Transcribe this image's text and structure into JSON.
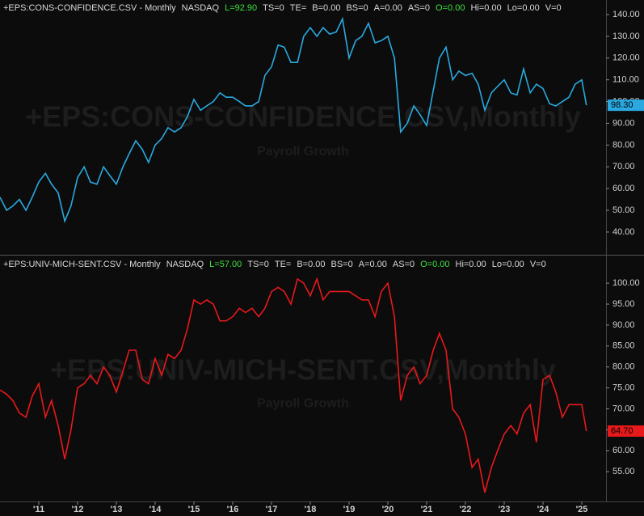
{
  "chart_data": [
    {
      "type": "line",
      "header": [
        {
          "text": "+EPS:CONS-CONFIDENCE.CSV - Monthly",
          "color": "#d8d8d8"
        },
        {
          "text": "NASDAQ",
          "color": "#d8d8d8"
        },
        {
          "text": "L=92.90",
          "color": "#3ee03e"
        },
        {
          "text": "TS=0",
          "color": "#d8d8d8"
        },
        {
          "text": "TE=",
          "color": "#d8d8d8"
        },
        {
          "text": "B=0.00",
          "color": "#d8d8d8"
        },
        {
          "text": "BS=0",
          "color": "#d8d8d8"
        },
        {
          "text": "A=0.00",
          "color": "#d8d8d8"
        },
        {
          "text": "AS=0",
          "color": "#d8d8d8"
        },
        {
          "text": "O=0.00",
          "color": "#3ee03e"
        },
        {
          "text": "Hi=0.00",
          "color": "#d8d8d8"
        },
        {
          "text": "Lo=0.00",
          "color": "#d8d8d8"
        },
        {
          "text": "V=0",
          "color": "#d8d8d8"
        }
      ],
      "watermark": "+EPS:CONS-CONFIDENCE.CSV,Monthly",
      "watermark_sub": "Payroll Growth",
      "last_label": "98.30",
      "xlim": [
        2010,
        2025.625
      ],
      "ylim": [
        30.3,
        146.7
      ],
      "yticks": [
        {
          "value": 40,
          "label": "40.00"
        },
        {
          "value": 50,
          "label": "50.00"
        },
        {
          "value": 60,
          "label": "60.00"
        },
        {
          "value": 70,
          "label": "70.00"
        },
        {
          "value": 80,
          "label": "80.00"
        },
        {
          "value": 90,
          "label": "90.00"
        },
        {
          "value": 100,
          "label": "100.00"
        },
        {
          "value": 110,
          "label": "110.00"
        },
        {
          "value": 120,
          "label": "120.00"
        },
        {
          "value": 130,
          "label": "130.00"
        },
        {
          "value": 140,
          "label": "140.00"
        }
      ],
      "x": [
        2010,
        2010.17,
        2010.33,
        2010.5,
        2010.67,
        2010.83,
        2011,
        2011.17,
        2011.33,
        2011.5,
        2011.67,
        2011.83,
        2012,
        2012.17,
        2012.33,
        2012.5,
        2012.67,
        2012.83,
        2013,
        2013.17,
        2013.33,
        2013.5,
        2013.67,
        2013.83,
        2014,
        2014.17,
        2014.33,
        2014.5,
        2014.67,
        2014.83,
        2015,
        2015.17,
        2015.33,
        2015.5,
        2015.67,
        2015.83,
        2016,
        2016.17,
        2016.33,
        2016.5,
        2016.67,
        2016.83,
        2017,
        2017.17,
        2017.33,
        2017.5,
        2017.67,
        2017.83,
        2018,
        2018.17,
        2018.33,
        2018.5,
        2018.67,
        2018.83,
        2019,
        2019.17,
        2019.33,
        2019.5,
        2019.67,
        2019.83,
        2020,
        2020.17,
        2020.33,
        2020.5,
        2020.67,
        2020.83,
        2021,
        2021.17,
        2021.33,
        2021.5,
        2021.67,
        2021.83,
        2022,
        2022.17,
        2022.33,
        2022.5,
        2022.67,
        2022.83,
        2023,
        2023.17,
        2023.33,
        2023.5,
        2023.67,
        2023.83,
        2024,
        2024.17,
        2024.33,
        2024.5,
        2024.67,
        2024.83,
        2025,
        2025.12
      ],
      "series": [
        {
          "color": "#2aa9e0",
          "values": [
            56,
            50,
            52,
            55,
            50,
            56,
            63,
            67,
            62,
            58,
            45,
            52,
            65,
            70,
            63,
            62,
            70,
            66,
            62,
            70,
            76,
            82,
            78,
            72,
            80,
            83,
            88,
            86,
            88,
            93,
            101,
            96,
            98,
            100,
            104,
            102,
            102,
            100,
            98,
            98,
            100,
            112,
            116,
            126,
            125,
            118,
            118,
            130,
            134,
            130,
            134,
            131,
            132,
            138,
            120,
            128,
            130,
            136,
            127,
            128,
            130,
            120,
            86,
            90,
            98,
            94,
            89,
            105,
            120,
            125,
            110,
            114,
            112,
            113,
            108,
            96,
            104,
            107,
            110,
            104,
            103,
            115,
            104,
            108,
            106,
            99,
            98,
            100,
            102,
            108,
            110,
            98.3
          ]
        }
      ]
    },
    {
      "type": "line",
      "header": [
        {
          "text": "+EPS:UNIV-MICH-SENT.CSV - Monthly",
          "color": "#d8d8d8"
        },
        {
          "text": "NASDAQ",
          "color": "#d8d8d8"
        },
        {
          "text": "L=57.00",
          "color": "#3ee03e"
        },
        {
          "text": "TS=0",
          "color": "#d8d8d8"
        },
        {
          "text": "TE=",
          "color": "#d8d8d8"
        },
        {
          "text": "B=0.00",
          "color": "#d8d8d8"
        },
        {
          "text": "BS=0",
          "color": "#d8d8d8"
        },
        {
          "text": "A=0.00",
          "color": "#d8d8d8"
        },
        {
          "text": "AS=0",
          "color": "#d8d8d8"
        },
        {
          "text": "O=0.00",
          "color": "#3ee03e"
        },
        {
          "text": "Hi=0.00",
          "color": "#d8d8d8"
        },
        {
          "text": "Lo=0.00",
          "color": "#d8d8d8"
        },
        {
          "text": "V=0",
          "color": "#d8d8d8"
        }
      ],
      "watermark": "+EPS:UNIV-MICH-SENT.CSV,Monthly",
      "watermark_sub": "Payroll Growth",
      "last_label": "64.70",
      "xlim": [
        2010,
        2025.625
      ],
      "xticks": [
        {
          "value": 2011,
          "label": "'11"
        },
        {
          "value": 2012,
          "label": "'12"
        },
        {
          "value": 2013,
          "label": "'13"
        },
        {
          "value": 2014,
          "label": "'14"
        },
        {
          "value": 2015,
          "label": "'15"
        },
        {
          "value": 2016,
          "label": "'16"
        },
        {
          "value": 2017,
          "label": "'17"
        },
        {
          "value": 2018,
          "label": "'18"
        },
        {
          "value": 2019,
          "label": "'19"
        },
        {
          "value": 2020,
          "label": "'20"
        },
        {
          "value": 2021,
          "label": "'21"
        },
        {
          "value": 2022,
          "label": "'22"
        },
        {
          "value": 2023,
          "label": "'23"
        },
        {
          "value": 2024,
          "label": "'24"
        },
        {
          "value": 2025,
          "label": "'25"
        }
      ],
      "ylim": [
        47.9,
        106.2
      ],
      "yticks": [
        {
          "value": 55,
          "label": "55.00"
        },
        {
          "value": 60,
          "label": "60.00"
        },
        {
          "value": 65,
          "label": "65.00"
        },
        {
          "value": 70,
          "label": "70.00"
        },
        {
          "value": 75,
          "label": "75.00"
        },
        {
          "value": 80,
          "label": "80.00"
        },
        {
          "value": 85,
          "label": "85.00"
        },
        {
          "value": 90,
          "label": "90.00"
        },
        {
          "value": 95,
          "label": "95.00"
        },
        {
          "value": 100,
          "label": "100.00"
        }
      ],
      "x": [
        2010,
        2010.17,
        2010.33,
        2010.5,
        2010.67,
        2010.83,
        2011,
        2011.17,
        2011.33,
        2011.5,
        2011.67,
        2011.83,
        2012,
        2012.17,
        2012.33,
        2012.5,
        2012.67,
        2012.83,
        2013,
        2013.17,
        2013.33,
        2013.5,
        2013.67,
        2013.83,
        2014,
        2014.17,
        2014.33,
        2014.5,
        2014.67,
        2014.83,
        2015,
        2015.17,
        2015.33,
        2015.5,
        2015.67,
        2015.83,
        2016,
        2016.17,
        2016.33,
        2016.5,
        2016.67,
        2016.83,
        2017,
        2017.17,
        2017.33,
        2017.5,
        2017.67,
        2017.83,
        2018,
        2018.17,
        2018.33,
        2018.5,
        2018.67,
        2018.83,
        2019,
        2019.17,
        2019.33,
        2019.5,
        2019.67,
        2019.83,
        2020,
        2020.17,
        2020.33,
        2020.5,
        2020.67,
        2020.83,
        2021,
        2021.17,
        2021.33,
        2021.5,
        2021.67,
        2021.83,
        2022,
        2022.17,
        2022.33,
        2022.5,
        2022.67,
        2022.83,
        2023,
        2023.17,
        2023.33,
        2023.5,
        2023.67,
        2023.83,
        2024,
        2024.17,
        2024.33,
        2024.5,
        2024.67,
        2024.83,
        2025,
        2025.12
      ],
      "series": [
        {
          "color": "#e8191b",
          "values": [
            74.5,
            73.5,
            72,
            69,
            68,
            73,
            76,
            68,
            72,
            66,
            58,
            65,
            75,
            76,
            78,
            76,
            80,
            78,
            74,
            79,
            84,
            84,
            77,
            76,
            82,
            78,
            83,
            82,
            84,
            89,
            96,
            95,
            96,
            95,
            91,
            91,
            92,
            94,
            93,
            94,
            92,
            94,
            98,
            99,
            98,
            95,
            101,
            100,
            97,
            101,
            96,
            98,
            98,
            98,
            98,
            97,
            96,
            96,
            92,
            98,
            100,
            92,
            72,
            78,
            80,
            76,
            78,
            84,
            88,
            84,
            70,
            68,
            64,
            56,
            58,
            50,
            56,
            60,
            64,
            66,
            64,
            69,
            71,
            62,
            77,
            78,
            74,
            68,
            71,
            71,
            71,
            64.7
          ]
        }
      ]
    }
  ]
}
